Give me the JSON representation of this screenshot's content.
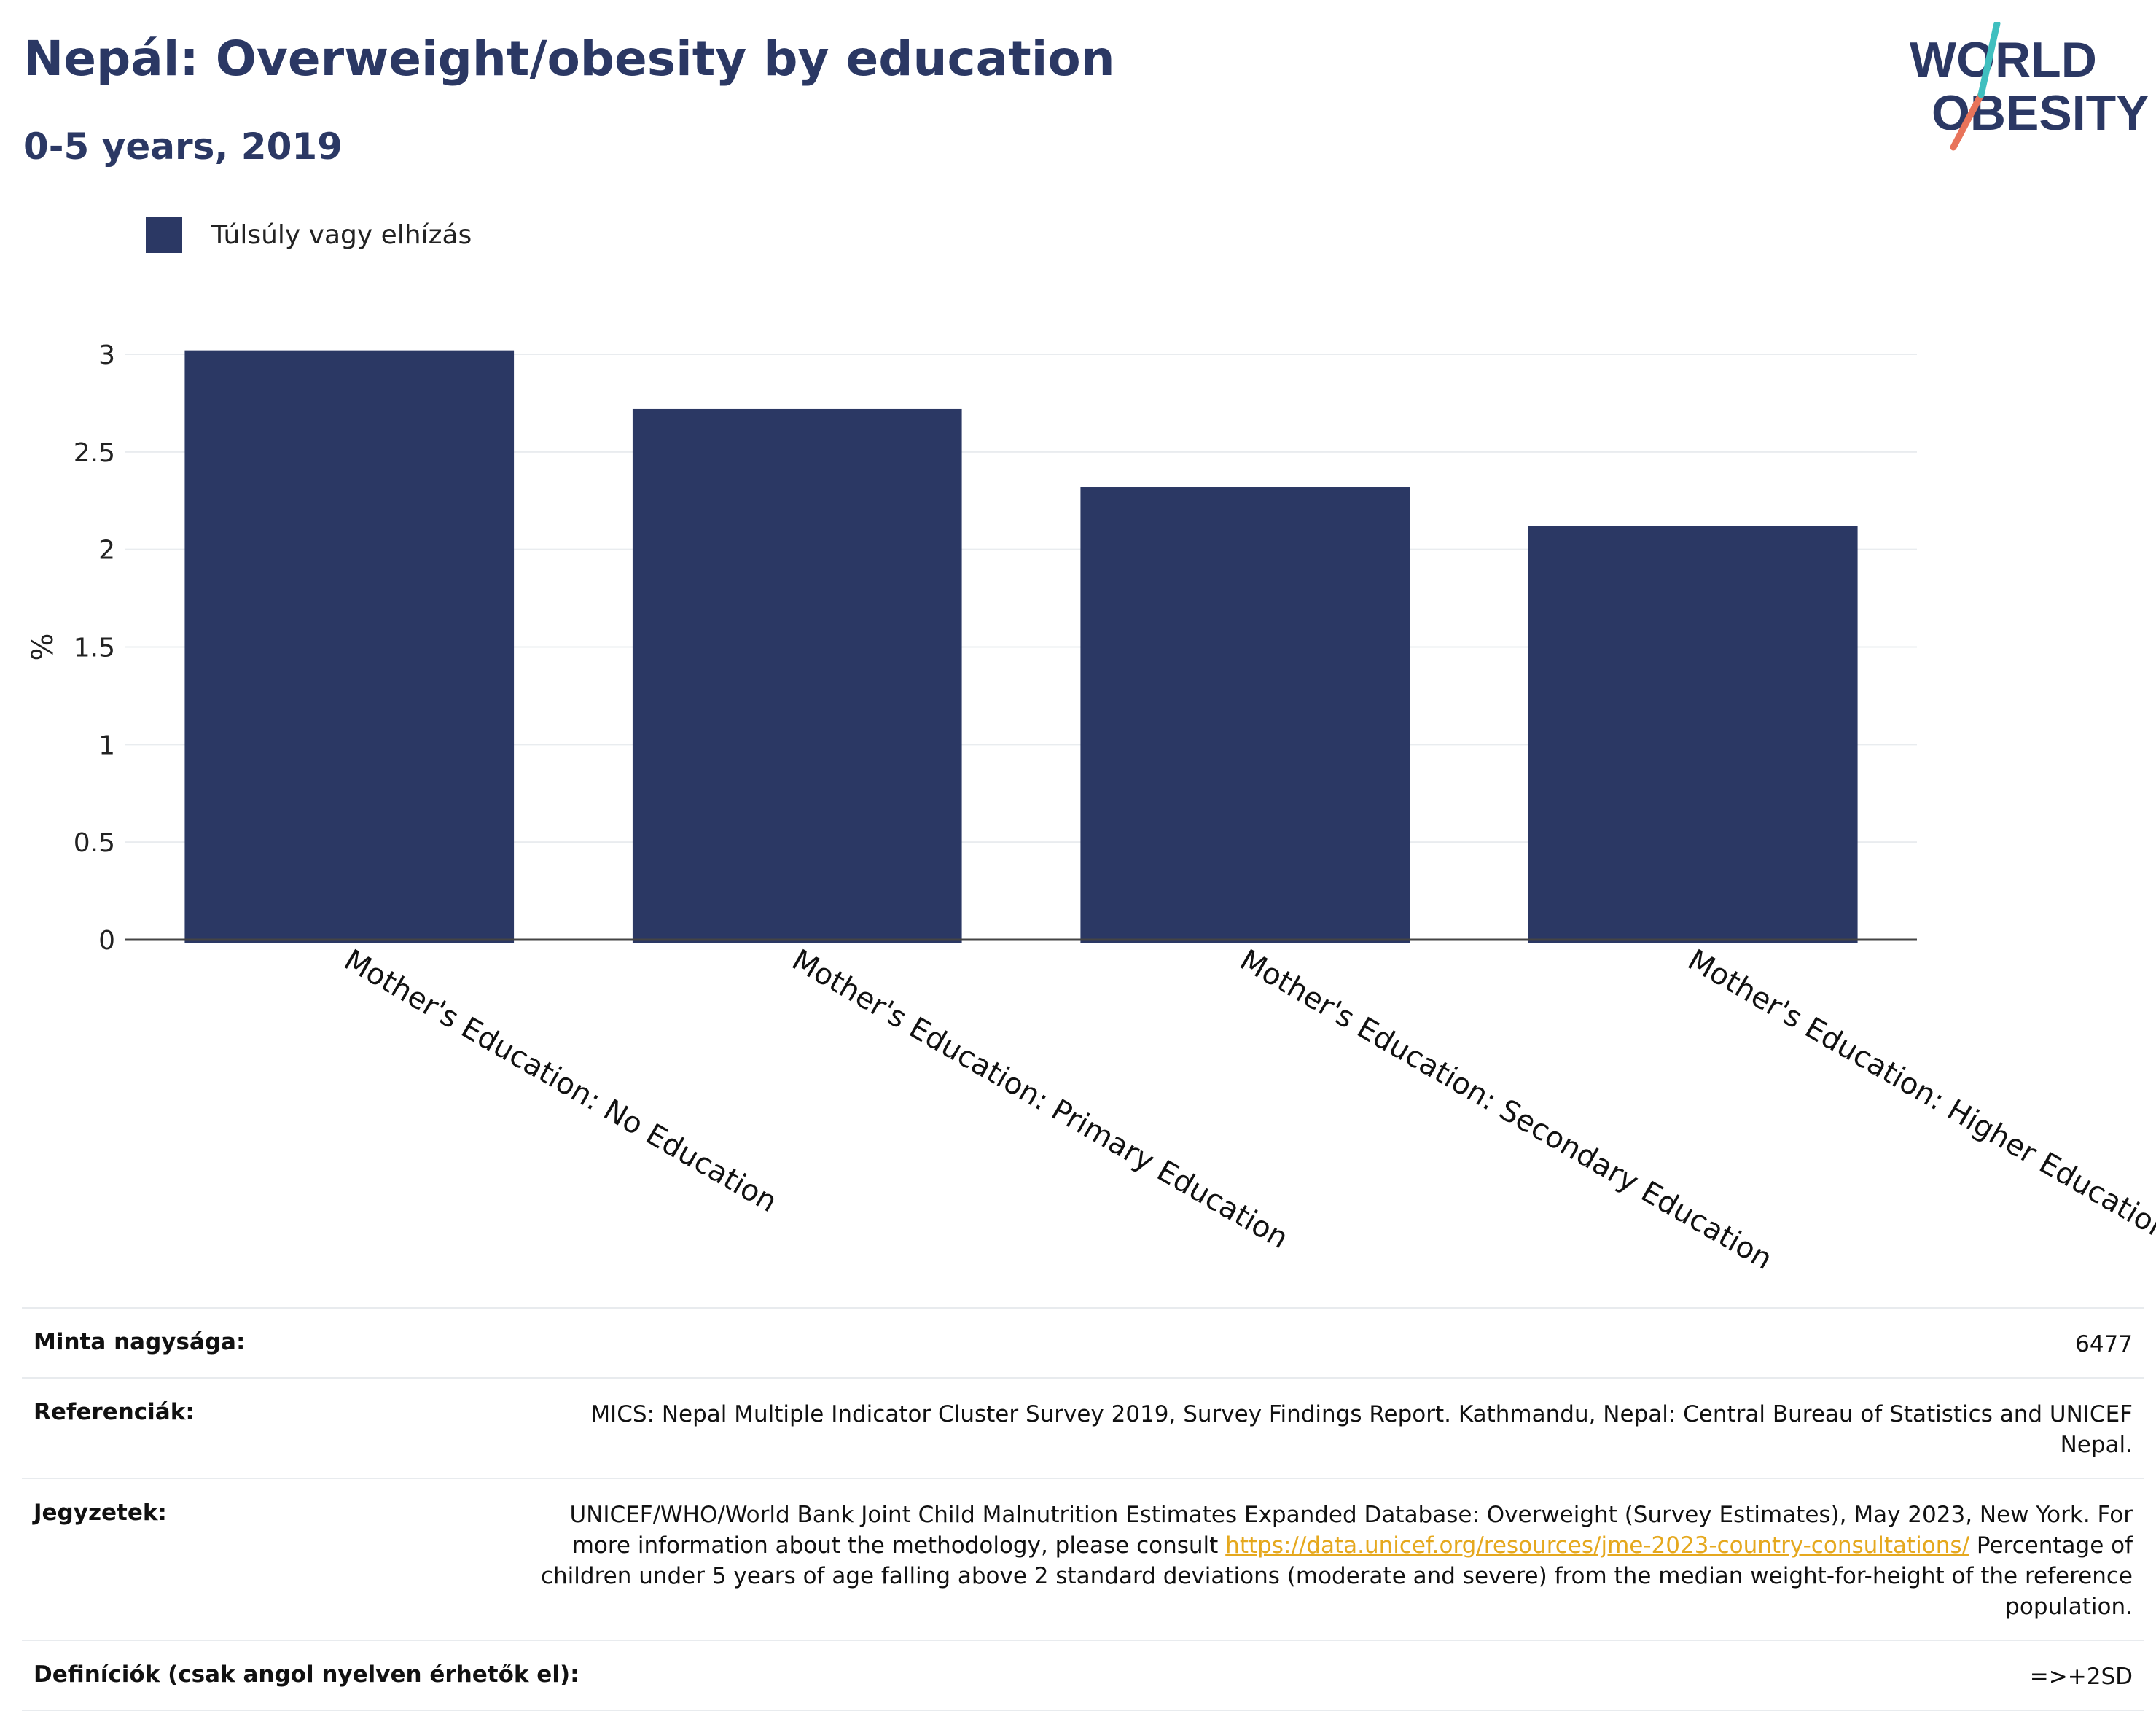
{
  "header": {
    "title": "Nepál: Overweight/obesity by education",
    "subtitle": "0-5 years, 2019"
  },
  "logo": {
    "line1": "WORLD",
    "line2": "OBESITY"
  },
  "legend": {
    "label": "Túlsúly vagy elhízás"
  },
  "chart_data": {
    "type": "bar",
    "categories": [
      "Mother's Education: No Education",
      "Mother's Education: Primary Education",
      "Mother's Education: Secondary Education",
      "Mother's Education: Higher Education"
    ],
    "series": [
      {
        "name": "Túlsúly vagy elhízás",
        "values": [
          3.02,
          2.72,
          2.32,
          2.12
        ]
      }
    ],
    "ylabel": "%",
    "xlabel": "",
    "ylim": [
      0,
      3
    ],
    "yticks": [
      "0",
      "0.5",
      "1",
      "1.5",
      "2",
      "2.5",
      "3"
    ],
    "grid": true,
    "legend_position": "top-left",
    "bar_color": "#2b3864"
  },
  "meta": {
    "sample_size": {
      "label": "Minta nagysága:",
      "value": "6477"
    },
    "references": {
      "label": "Referenciák:",
      "value": "MICS: Nepal Multiple Indicator Cluster Survey 2019, Survey Findings Report. Kathmandu, Nepal: Central Bureau of Statistics and UNICEF Nepal."
    },
    "notes": {
      "label": "Jegyzetek:",
      "text_before": "UNICEF/WHO/World Bank Joint Child Malnutrition Estimates Expanded Database: Overweight (Survey Estimates), May 2023, New York. For more information about the methodology, please consult ",
      "link": "https://data.unicef.org/resources/jme-2023-country-consultations/",
      "text_after": " Percentage of children under 5 years of age falling above 2 standard deviations (moderate and severe) from the median weight-for-height of the reference population."
    },
    "definitions": {
      "label": "Definíciók (csak angol nyelven érhetők el):",
      "value": "=>+2SD"
    }
  },
  "colors": {
    "brand": "#2b3864",
    "accent_red": "#e8735a",
    "accent_teal": "#3fbfbf",
    "link": "#e5a81e"
  }
}
